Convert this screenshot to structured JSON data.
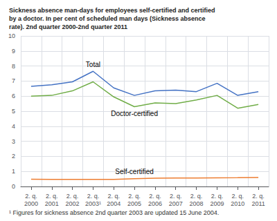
{
  "chart_data": {
    "type": "line",
    "title": "Sickness absence man-days for employees self-certified and certified\nby a doctor. In per cent of scheduled man days (Sickness absence\nrate). 2nd quarter 2000-2nd quarter 2011",
    "footnote": "¹ Figures for sickness absence 2nd quarter 2003 are updated 15 June 2004.",
    "categories": [
      "2. q.\n2000",
      "2. q.\n2001",
      "2. q.\n2002",
      "2. q.\n2003¹",
      "2. q.\n2004",
      "2. q.\n2005",
      "2. q.\n2006",
      "2. q.\n2007",
      "2. q.\n2008",
      "2. q.\n2009",
      "2. q.\n2010",
      "2. q.\n2011"
    ],
    "series": [
      {
        "name": "Total",
        "color": "#4472C4",
        "values": [
          6.65,
          6.75,
          6.95,
          7.65,
          6.55,
          6.05,
          6.35,
          6.4,
          6.3,
          6.85,
          6.05,
          6.3
        ]
      },
      {
        "name": "Doctor-certified",
        "color": "#70AD47",
        "values": [
          6.0,
          6.05,
          6.35,
          6.95,
          5.95,
          5.3,
          5.55,
          5.5,
          5.75,
          6.05,
          5.2,
          5.45
        ]
      },
      {
        "name": "Self-certified",
        "color": "#ED7D31",
        "values": [
          0.48,
          0.47,
          0.47,
          0.47,
          0.47,
          0.52,
          0.55,
          0.56,
          0.56,
          0.57,
          0.58,
          0.6
        ]
      }
    ],
    "ylim": [
      0,
      10
    ],
    "yticks": [
      0,
      1,
      2,
      3,
      4,
      5,
      6,
      7,
      8,
      9,
      10
    ],
    "grid": true
  }
}
